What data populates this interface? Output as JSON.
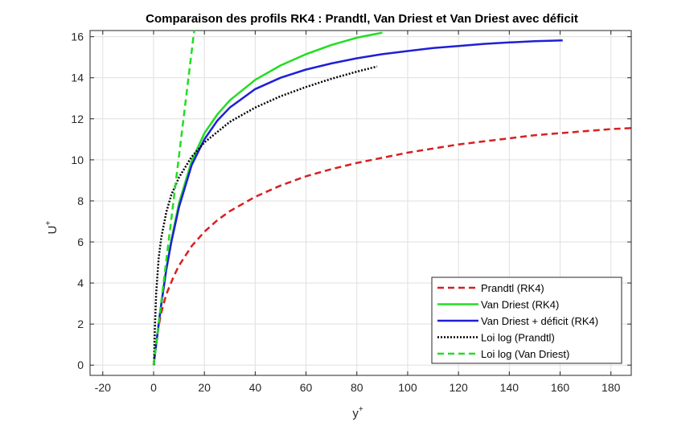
{
  "chart_data": {
    "type": "line",
    "title": "Comparaison des profils RK4 : Prandtl, Van Driest et Van Driest avec déficit",
    "xlabel": "y",
    "xlabel_sup": "+",
    "ylabel": "U",
    "ylabel_sup": "+",
    "xlim": [
      -25,
      188
    ],
    "ylim": [
      -0.5,
      16.3
    ],
    "xticks": [
      -20,
      0,
      20,
      40,
      60,
      80,
      100,
      120,
      140,
      160,
      180
    ],
    "yticks": [
      0,
      2,
      4,
      6,
      8,
      10,
      12,
      14,
      16
    ],
    "grid": true,
    "legend_position": "bottom-right",
    "series": [
      {
        "name": "Prandtl (RK4)",
        "color": "#d62020",
        "style": "dashed",
        "x": [
          0,
          1,
          2,
          3,
          5,
          8,
          10,
          15,
          20,
          25,
          30,
          40,
          50,
          60,
          70,
          80,
          90,
          100,
          110,
          120,
          130,
          140,
          150,
          160,
          170,
          180,
          188
        ],
        "y": [
          0,
          1.0,
          1.9,
          2.55,
          3.45,
          4.35,
          4.85,
          5.8,
          6.5,
          7.05,
          7.5,
          8.2,
          8.75,
          9.2,
          9.55,
          9.85,
          10.1,
          10.35,
          10.55,
          10.75,
          10.9,
          11.05,
          11.2,
          11.3,
          11.4,
          11.5,
          11.55
        ]
      },
      {
        "name": "Van Driest (RK4)",
        "color": "#22dd22",
        "style": "solid",
        "x": [
          0,
          1,
          2,
          3,
          5,
          7,
          10,
          15,
          20,
          25,
          30,
          40,
          50,
          60,
          70,
          80,
          90
        ],
        "y": [
          0,
          1.0,
          2.0,
          2.95,
          4.7,
          6.1,
          7.9,
          9.95,
          11.3,
          12.2,
          12.9,
          13.9,
          14.6,
          15.15,
          15.6,
          15.95,
          16.2
        ]
      },
      {
        "name": "Van Driest + déficit (RK4)",
        "color": "#1f1fd6",
        "style": "solid",
        "x": [
          0,
          1,
          2,
          3,
          5,
          7,
          10,
          15,
          20,
          25,
          30,
          40,
          50,
          60,
          70,
          80,
          90,
          100,
          110,
          120,
          130,
          140,
          150,
          161
        ],
        "y": [
          0,
          1.0,
          2.0,
          2.95,
          4.65,
          6.0,
          7.7,
          9.75,
          11.0,
          11.9,
          12.55,
          13.45,
          14.0,
          14.4,
          14.7,
          14.95,
          15.15,
          15.3,
          15.45,
          15.55,
          15.65,
          15.72,
          15.78,
          15.82
        ]
      },
      {
        "name": "Loi log (Prandtl)",
        "color": "#000000",
        "style": "dotted",
        "x": [
          0.2,
          0.3,
          0.5,
          1,
          2,
          3,
          5,
          7,
          10,
          15,
          20,
          30,
          40,
          50,
          60,
          70,
          80,
          88
        ],
        "y": [
          0,
          0.6,
          1.8,
          3.5,
          5.2,
          6.2,
          7.45,
          8.3,
          9.15,
          10.15,
          10.85,
          11.85,
          12.55,
          13.1,
          13.55,
          13.95,
          14.3,
          14.55
        ]
      },
      {
        "name": "Loi log (Van Driest)",
        "color": "#22dd22",
        "style": "dashed",
        "x": [
          0,
          16
        ],
        "y": [
          0,
          16.3
        ]
      }
    ]
  }
}
